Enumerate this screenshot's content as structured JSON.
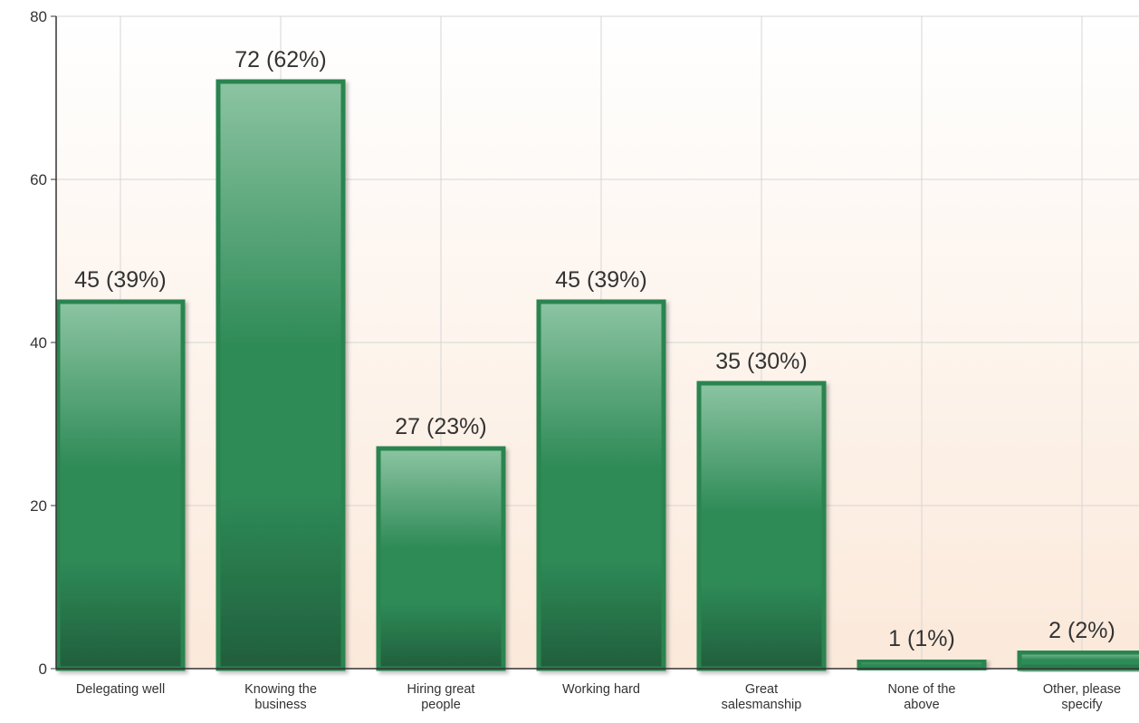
{
  "chart_data": {
    "type": "bar",
    "categories": [
      [
        "Delegating well"
      ],
      [
        "Knowing the",
        "business"
      ],
      [
        "Hiring great",
        "people"
      ],
      [
        "Working hard"
      ],
      [
        "Great",
        "salesmanship"
      ],
      [
        "None of the",
        "above"
      ],
      [
        "Other, please",
        "specify"
      ]
    ],
    "values": [
      45,
      72,
      27,
      45,
      35,
      1,
      2
    ],
    "data_labels": [
      "45 (39%)",
      "72 (62%)",
      "27 (23%)",
      "45 (39%)",
      "35 (30%)",
      "1 (1%)",
      "2 (2%)"
    ],
    "ylim": [
      0,
      80
    ],
    "yticks": [
      0,
      20,
      40,
      60,
      80
    ],
    "grid": true,
    "colors": {
      "bar_top": "#8cc4a2",
      "bar_mid": "#2e8b57",
      "bar_bottom": "#215e3c",
      "bar_border": "#2a8450",
      "background_top": "#ffffff",
      "background_bottom": "#fbe9da",
      "gridline": "#d6d6d6",
      "axis": "#333333",
      "text": "#333333"
    }
  }
}
